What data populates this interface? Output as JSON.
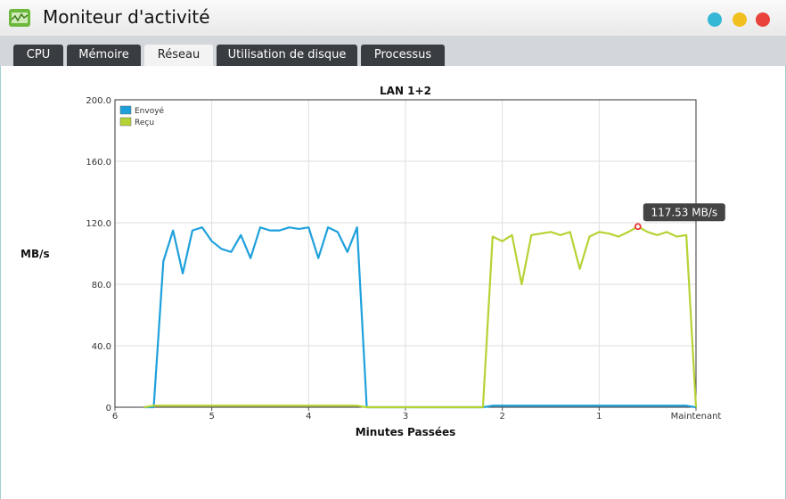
{
  "window": {
    "title": "Moniteur d'activité"
  },
  "tabs": [
    "CPU",
    "Mémoire",
    "Réseau",
    "Utilisation de disque",
    "Processus"
  ],
  "active_tab": 2,
  "chart_data": {
    "type": "line",
    "title": "LAN 1+2",
    "x_label": "Minutes Passées",
    "y_label": "MB/s",
    "x": [
      5.7,
      5.6,
      5.5,
      5.4,
      5.3,
      5.2,
      5.1,
      5.0,
      4.9,
      4.8,
      4.7,
      4.6,
      4.5,
      4.4,
      4.3,
      4.2,
      4.1,
      4.0,
      3.9,
      3.8,
      3.7,
      3.6,
      3.5,
      3.4,
      3.3,
      3.2,
      3.1,
      3.0,
      2.9,
      2.8,
      2.7,
      2.6,
      2.5,
      2.4,
      2.3,
      2.2,
      2.1,
      2.0,
      1.9,
      1.8,
      1.7,
      1.6,
      1.5,
      1.4,
      1.3,
      1.2,
      1.1,
      1.0,
      0.9,
      0.8,
      0.7,
      0.6,
      0.5,
      0.4,
      0.3,
      0.2,
      0.1,
      0.0
    ],
    "xlim": [
      6,
      0
    ],
    "xticks": [
      6,
      5,
      4,
      3,
      2,
      1,
      {
        "value": 0,
        "label": "Maintenant"
      }
    ],
    "ylim": [
      0,
      200
    ],
    "yticks": [
      0,
      {
        "value": 40,
        "label": "40.0"
      },
      {
        "value": 80,
        "label": "80.0"
      },
      {
        "value": 120,
        "label": "120.0"
      },
      {
        "value": 160,
        "label": "160.0"
      },
      {
        "value": 200,
        "label": "200.0"
      }
    ],
    "grid": true,
    "legend": "top-left",
    "series": [
      {
        "name": "Envoyé",
        "color": "#1ea0dc",
        "values": [
          0,
          0,
          95,
          115,
          87,
          115,
          117,
          108,
          103,
          101,
          112,
          97,
          117,
          115,
          115,
          117,
          116,
          117,
          97,
          117,
          114,
          101,
          117,
          0,
          0,
          0,
          0,
          0,
          0,
          0,
          0,
          0,
          0,
          0,
          0,
          0,
          1,
          1,
          1,
          1,
          1,
          1,
          1,
          1,
          1,
          1,
          1,
          1,
          1,
          1,
          1,
          1,
          1,
          1,
          1,
          1,
          1,
          0
        ]
      },
      {
        "name": "Reçu",
        "color": "#b5d334",
        "values": [
          0,
          1,
          1,
          1,
          1,
          1,
          1,
          1,
          1,
          1,
          1,
          1,
          1,
          1,
          1,
          1,
          1,
          1,
          1,
          1,
          1,
          1,
          1,
          0,
          0,
          0,
          0,
          0,
          0,
          0,
          0,
          0,
          0,
          0,
          0,
          0,
          111,
          108,
          112,
          80,
          112,
          113,
          114,
          112,
          114,
          90,
          111,
          114,
          113,
          111,
          114,
          117.53,
          114,
          112,
          114,
          111,
          112,
          0
        ]
      }
    ],
    "annotations": [
      {
        "x": 0.6,
        "y": 117.53,
        "label": "117.53 MB/s"
      }
    ]
  }
}
